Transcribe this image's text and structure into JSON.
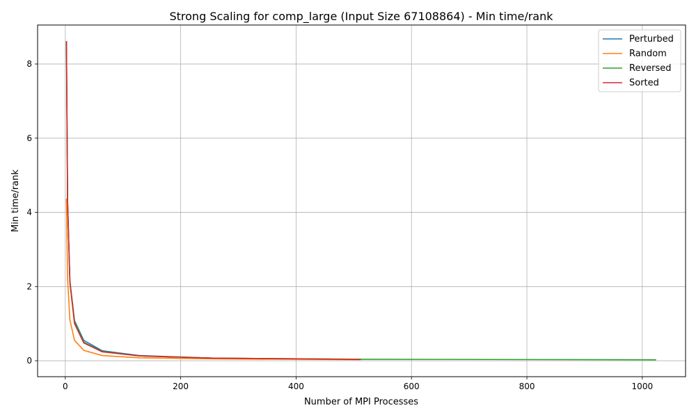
{
  "chart_data": {
    "type": "line",
    "title": "Strong Scaling for comp_large (Input Size 67108864) - Min time/rank",
    "xlabel": "Number of MPI Processes",
    "ylabel": "Min time/rank",
    "xlim": [
      -48,
      1075
    ],
    "ylim": [
      -0.43,
      9.05
    ],
    "xticks": [
      0,
      200,
      400,
      600,
      800,
      1000
    ],
    "yticks": [
      0,
      2,
      4,
      6,
      8
    ],
    "grid": true,
    "legend_position": "top-right",
    "series": [
      {
        "name": "Perturbed",
        "color": "#1f77b4",
        "x": [
          2,
          4,
          8,
          16,
          32,
          64,
          128,
          256,
          512
        ],
        "y": [
          8.6,
          4.3,
          2.15,
          1.08,
          0.55,
          0.27,
          0.14,
          0.07,
          0.035
        ]
      },
      {
        "name": "Random",
        "color": "#ff7f0e",
        "x": [
          2,
          4,
          8,
          16,
          32,
          64,
          128,
          256,
          512
        ],
        "y": [
          4.37,
          2.2,
          1.1,
          0.55,
          0.28,
          0.14,
          0.08,
          0.05,
          0.03
        ]
      },
      {
        "name": "Reversed",
        "color": "#2ca02c",
        "x": [
          2,
          4,
          8,
          16,
          32,
          64,
          128,
          256,
          512,
          1024
        ],
        "y": [
          8.6,
          4.3,
          2.15,
          1.05,
          0.5,
          0.25,
          0.13,
          0.07,
          0.04,
          0.025
        ]
      },
      {
        "name": "Sorted",
        "color": "#d62728",
        "x": [
          2,
          4,
          8,
          16,
          32,
          64,
          128,
          256,
          512
        ],
        "y": [
          8.62,
          4.3,
          2.1,
          1.0,
          0.48,
          0.24,
          0.13,
          0.07,
          0.035
        ]
      }
    ]
  }
}
